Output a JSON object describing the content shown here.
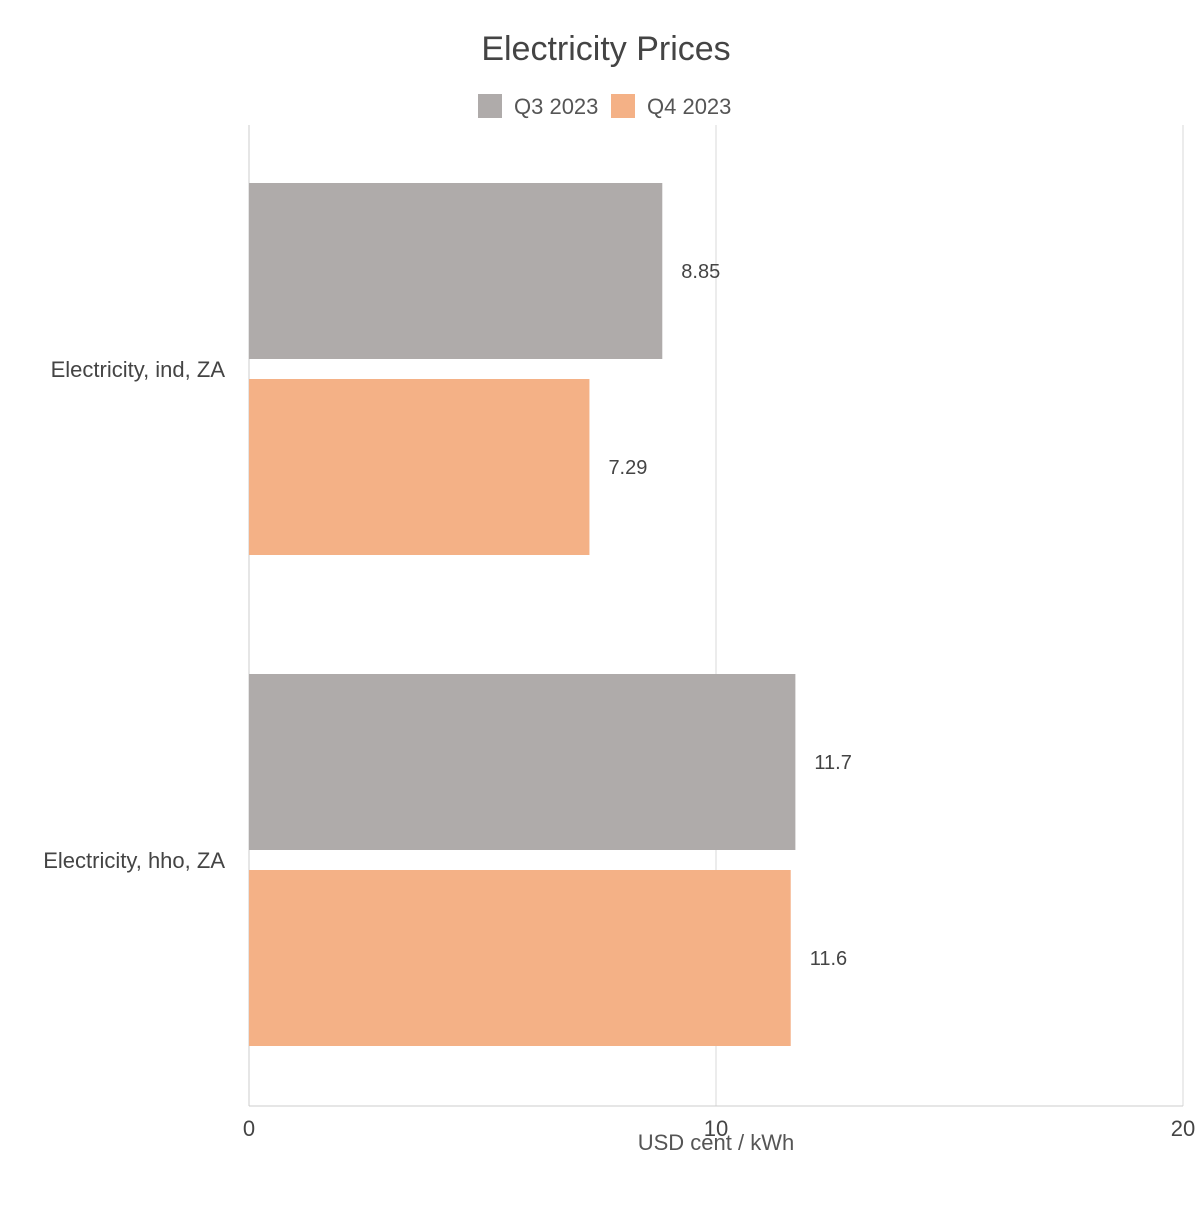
{
  "chart_data": {
    "type": "bar",
    "orientation": "horizontal",
    "title": "Electricity Prices",
    "categories": [
      "Electricity, ind, ZA",
      "Electricity, hho, ZA"
    ],
    "series": [
      {
        "name": "Q3 2023",
        "color": "#afabaa",
        "values": [
          8.85,
          11.7
        ]
      },
      {
        "name": "Q4 2023",
        "color": "#f4b186",
        "values": [
          7.29,
          11.6
        ]
      }
    ],
    "xlabel": "USD cent / kWh",
    "xlim": [
      0,
      20
    ],
    "xticks": [
      0,
      10,
      20
    ],
    "grid": true,
    "legend": "top-center"
  }
}
